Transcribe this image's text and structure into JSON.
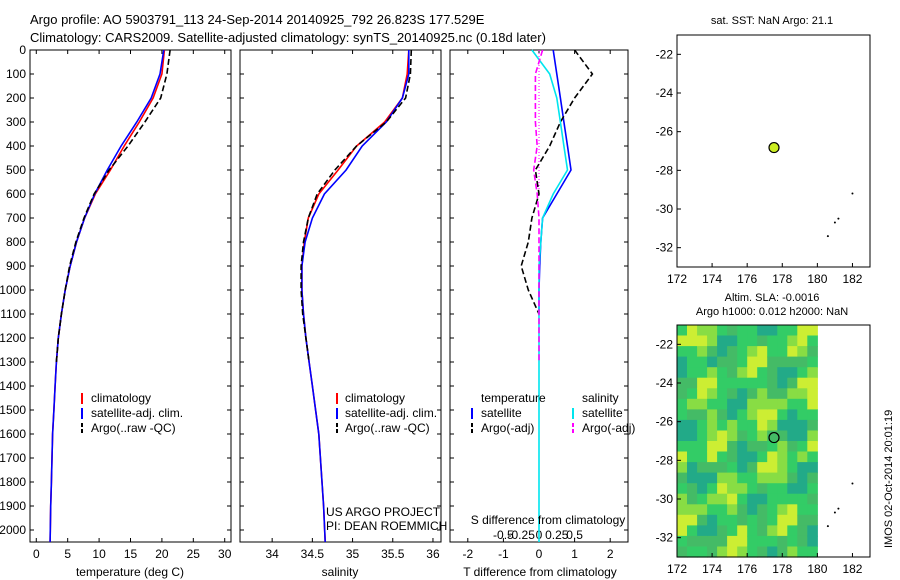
{
  "header": {
    "line1": "Argo profile: AO 5903791_113 24-Sep-2014 20140925_792 26.823S 177.529E",
    "line2": "Climatology: CARS2009. Satellite-adjusted climatology: synTS_20140925.nc (0.18d later)"
  },
  "colors": {
    "climatology": "#ff0000",
    "satellite": "#0000ff",
    "argo": "#000000",
    "sat_salinity": "#00e5ee",
    "argo_salinity": "#ff00ff",
    "marker": "#ccee22"
  },
  "panels": {
    "temperature": {
      "xlabel": "temperature (deg C)"
    },
    "salinity": {
      "xlabel": "salinity",
      "note1": "US ARGO PROJECT",
      "note2": "PI: DEAN ROEMMICH"
    },
    "difference": {
      "xlabel": "T difference from climatology",
      "top_axis_label": "S difference from climatology"
    },
    "map1": {
      "title": "sat. SST: NaN Argo: 21.1"
    },
    "map2": {
      "title1": "Altim. SLA: -0.0016",
      "title2": "Argo h1000: 0.012 h2000: NaN"
    }
  },
  "legend_profiles": [
    "climatology",
    "satellite-adj. clim.",
    "Argo(..raw -QC)"
  ],
  "legend_diff": {
    "temp_head": "temperature",
    "sal_head": "salinity",
    "satellite": "satellite",
    "argo": "Argo(-adj)"
  },
  "side_label": "IMOS 02-Oct-2014 20:01:19",
  "chart_data": [
    {
      "type": "line",
      "name": "temperature",
      "ylim": [
        2050,
        0
      ],
      "xlim": [
        -1,
        31
      ],
      "yticks": [
        0,
        100,
        200,
        300,
        400,
        500,
        600,
        700,
        800,
        900,
        1000,
        1100,
        1200,
        1300,
        1400,
        1500,
        1600,
        1700,
        1800,
        1900,
        2000
      ],
      "xticks": [
        0,
        5,
        10,
        15,
        20,
        25,
        30
      ],
      "series": [
        {
          "name": "climatology",
          "x": [
            20.4,
            20.0,
            18.6,
            16.4,
            14.0,
            11.8,
            9.4,
            7.7,
            6.4,
            5.4,
            4.6,
            4.0,
            3.5,
            3.2,
            3.0,
            2.8,
            2.6,
            2.5,
            2.4,
            2.3,
            2.2
          ],
          "y": [
            0,
            100,
            200,
            300,
            400,
            500,
            600,
            700,
            800,
            900,
            1000,
            1100,
            1200,
            1300,
            1400,
            1500,
            1600,
            1700,
            1800,
            1900,
            2050
          ]
        },
        {
          "name": "satellite-adj. clim.",
          "x": [
            20.3,
            19.7,
            18.3,
            16.0,
            13.5,
            11.3,
            9.3,
            7.7,
            6.4,
            5.4,
            4.6,
            4.0,
            3.5,
            3.2,
            3.0,
            2.8,
            2.6,
            2.5,
            2.4,
            2.3,
            2.2
          ],
          "y": [
            0,
            100,
            200,
            300,
            400,
            500,
            600,
            700,
            800,
            900,
            1000,
            1100,
            1200,
            1300,
            1400,
            1500,
            1600,
            1700,
            1800,
            1900,
            2050
          ]
        },
        {
          "name": "Argo(..raw -QC)",
          "x": [
            21.3,
            20.8,
            19.8,
            17.3,
            14.6,
            11.6,
            9.2,
            7.6,
            6.3,
            5.3,
            4.6,
            4.0,
            3.5,
            3.2
          ],
          "y": [
            0,
            100,
            200,
            300,
            400,
            500,
            600,
            700,
            800,
            900,
            1000,
            1100,
            1200,
            1300
          ]
        }
      ]
    },
    {
      "type": "line",
      "name": "salinity",
      "ylim": [
        2050,
        0
      ],
      "xlim": [
        33.6,
        36.1
      ],
      "xticks": [
        34,
        34.5,
        35,
        35.5,
        36
      ],
      "series": [
        {
          "name": "climatology",
          "x": [
            35.7,
            35.68,
            35.62,
            35.4,
            35.05,
            34.82,
            34.58,
            34.45,
            34.4,
            34.37,
            34.37,
            34.39,
            34.42,
            34.46,
            34.5,
            34.54,
            34.58,
            34.6,
            34.62,
            34.64,
            34.66
          ],
          "y": [
            0,
            100,
            200,
            300,
            400,
            500,
            600,
            700,
            800,
            900,
            1000,
            1100,
            1200,
            1300,
            1400,
            1500,
            1600,
            1700,
            1800,
            1900,
            2050
          ]
        },
        {
          "name": "satellite-adj. clim.",
          "x": [
            35.7,
            35.7,
            35.62,
            35.42,
            35.12,
            34.92,
            34.65,
            34.5,
            34.41,
            34.37,
            34.37,
            34.39,
            34.42,
            34.46,
            34.5,
            34.54,
            34.58,
            34.6,
            34.62,
            34.64,
            34.66
          ],
          "y": [
            0,
            100,
            200,
            300,
            400,
            500,
            600,
            700,
            800,
            900,
            1000,
            1100,
            1200,
            1300,
            1400,
            1500,
            1600,
            1700,
            1800,
            1900,
            2050
          ]
        },
        {
          "name": "Argo(..raw -QC)",
          "x": [
            35.73,
            35.72,
            35.66,
            35.42,
            35.05,
            34.78,
            34.56,
            34.45,
            34.39,
            34.36,
            34.36,
            34.38,
            34.42,
            34.46
          ],
          "y": [
            0,
            100,
            200,
            300,
            400,
            500,
            600,
            700,
            800,
            900,
            1000,
            1100,
            1200,
            1300
          ]
        }
      ]
    },
    {
      "type": "line",
      "name": "difference",
      "ylim": [
        2050,
        0
      ],
      "xlim": [
        -2.5,
        2.5
      ],
      "xticks": [
        -2,
        -1,
        0,
        1,
        2
      ],
      "top_xticks_labels": [
        "-0.5",
        "-0.25",
        "0",
        "0.25",
        "0.5"
      ],
      "series": [
        {
          "name": "temperature satellite",
          "x": [
            0.4,
            0.5,
            0.6,
            0.7,
            0.8,
            0.9,
            0.5,
            0.1,
            0.05,
            0.02,
            0.0,
            0.0
          ],
          "y": [
            0,
            100,
            200,
            300,
            400,
            500,
            600,
            700,
            800,
            900,
            1000,
            1100
          ]
        },
        {
          "name": "temperature Argo(-adj)",
          "x": [
            1.0,
            1.5,
            1.0,
            0.6,
            0.3,
            -0.1,
            0.0,
            -0.2,
            -0.3,
            -0.5,
            -0.3,
            0.0
          ],
          "y": [
            0,
            100,
            200,
            300,
            400,
            500,
            600,
            700,
            800,
            900,
            1000,
            1100
          ]
        },
        {
          "name": "salinity satellite",
          "x": [
            -0.2,
            0.3,
            0.5,
            0.6,
            0.7,
            0.8,
            0.4,
            0.1,
            0.05,
            0.0,
            0.0,
            0.0,
            0.0
          ],
          "y": [
            0,
            100,
            200,
            300,
            400,
            500,
            600,
            700,
            800,
            900,
            1000,
            1500,
            2050
          ]
        },
        {
          "name": "salinity Argo(-adj)",
          "x": [
            0.1,
            -0.1,
            -0.1,
            -0.1,
            -0.05,
            -0.15,
            -0.05,
            0.0,
            0.0,
            0.0,
            0.0,
            0.0,
            0.0
          ],
          "y": [
            0,
            100,
            200,
            300,
            400,
            500,
            600,
            700,
            800,
            900,
            1000,
            1100,
            1300
          ]
        }
      ]
    },
    {
      "type": "scatter",
      "name": "map1",
      "xlim": [
        172,
        183
      ],
      "ylim": [
        -33,
        -21
      ],
      "xticks": [
        172,
        174,
        176,
        178,
        180,
        182
      ],
      "yticks": [
        -22,
        -24,
        -26,
        -28,
        -30,
        -32
      ],
      "points": [
        {
          "x": 177.529,
          "y": -26.823
        }
      ]
    },
    {
      "type": "heatmap",
      "name": "map2",
      "xlim": [
        172,
        183
      ],
      "ylim": [
        -33,
        -21
      ],
      "xticks": [
        172,
        174,
        176,
        178,
        180,
        182
      ],
      "yticks": [
        -22,
        -24,
        -26,
        -28,
        -30,
        -32
      ],
      "points": [
        {
          "x": 177.529,
          "y": -26.823
        }
      ]
    }
  ]
}
